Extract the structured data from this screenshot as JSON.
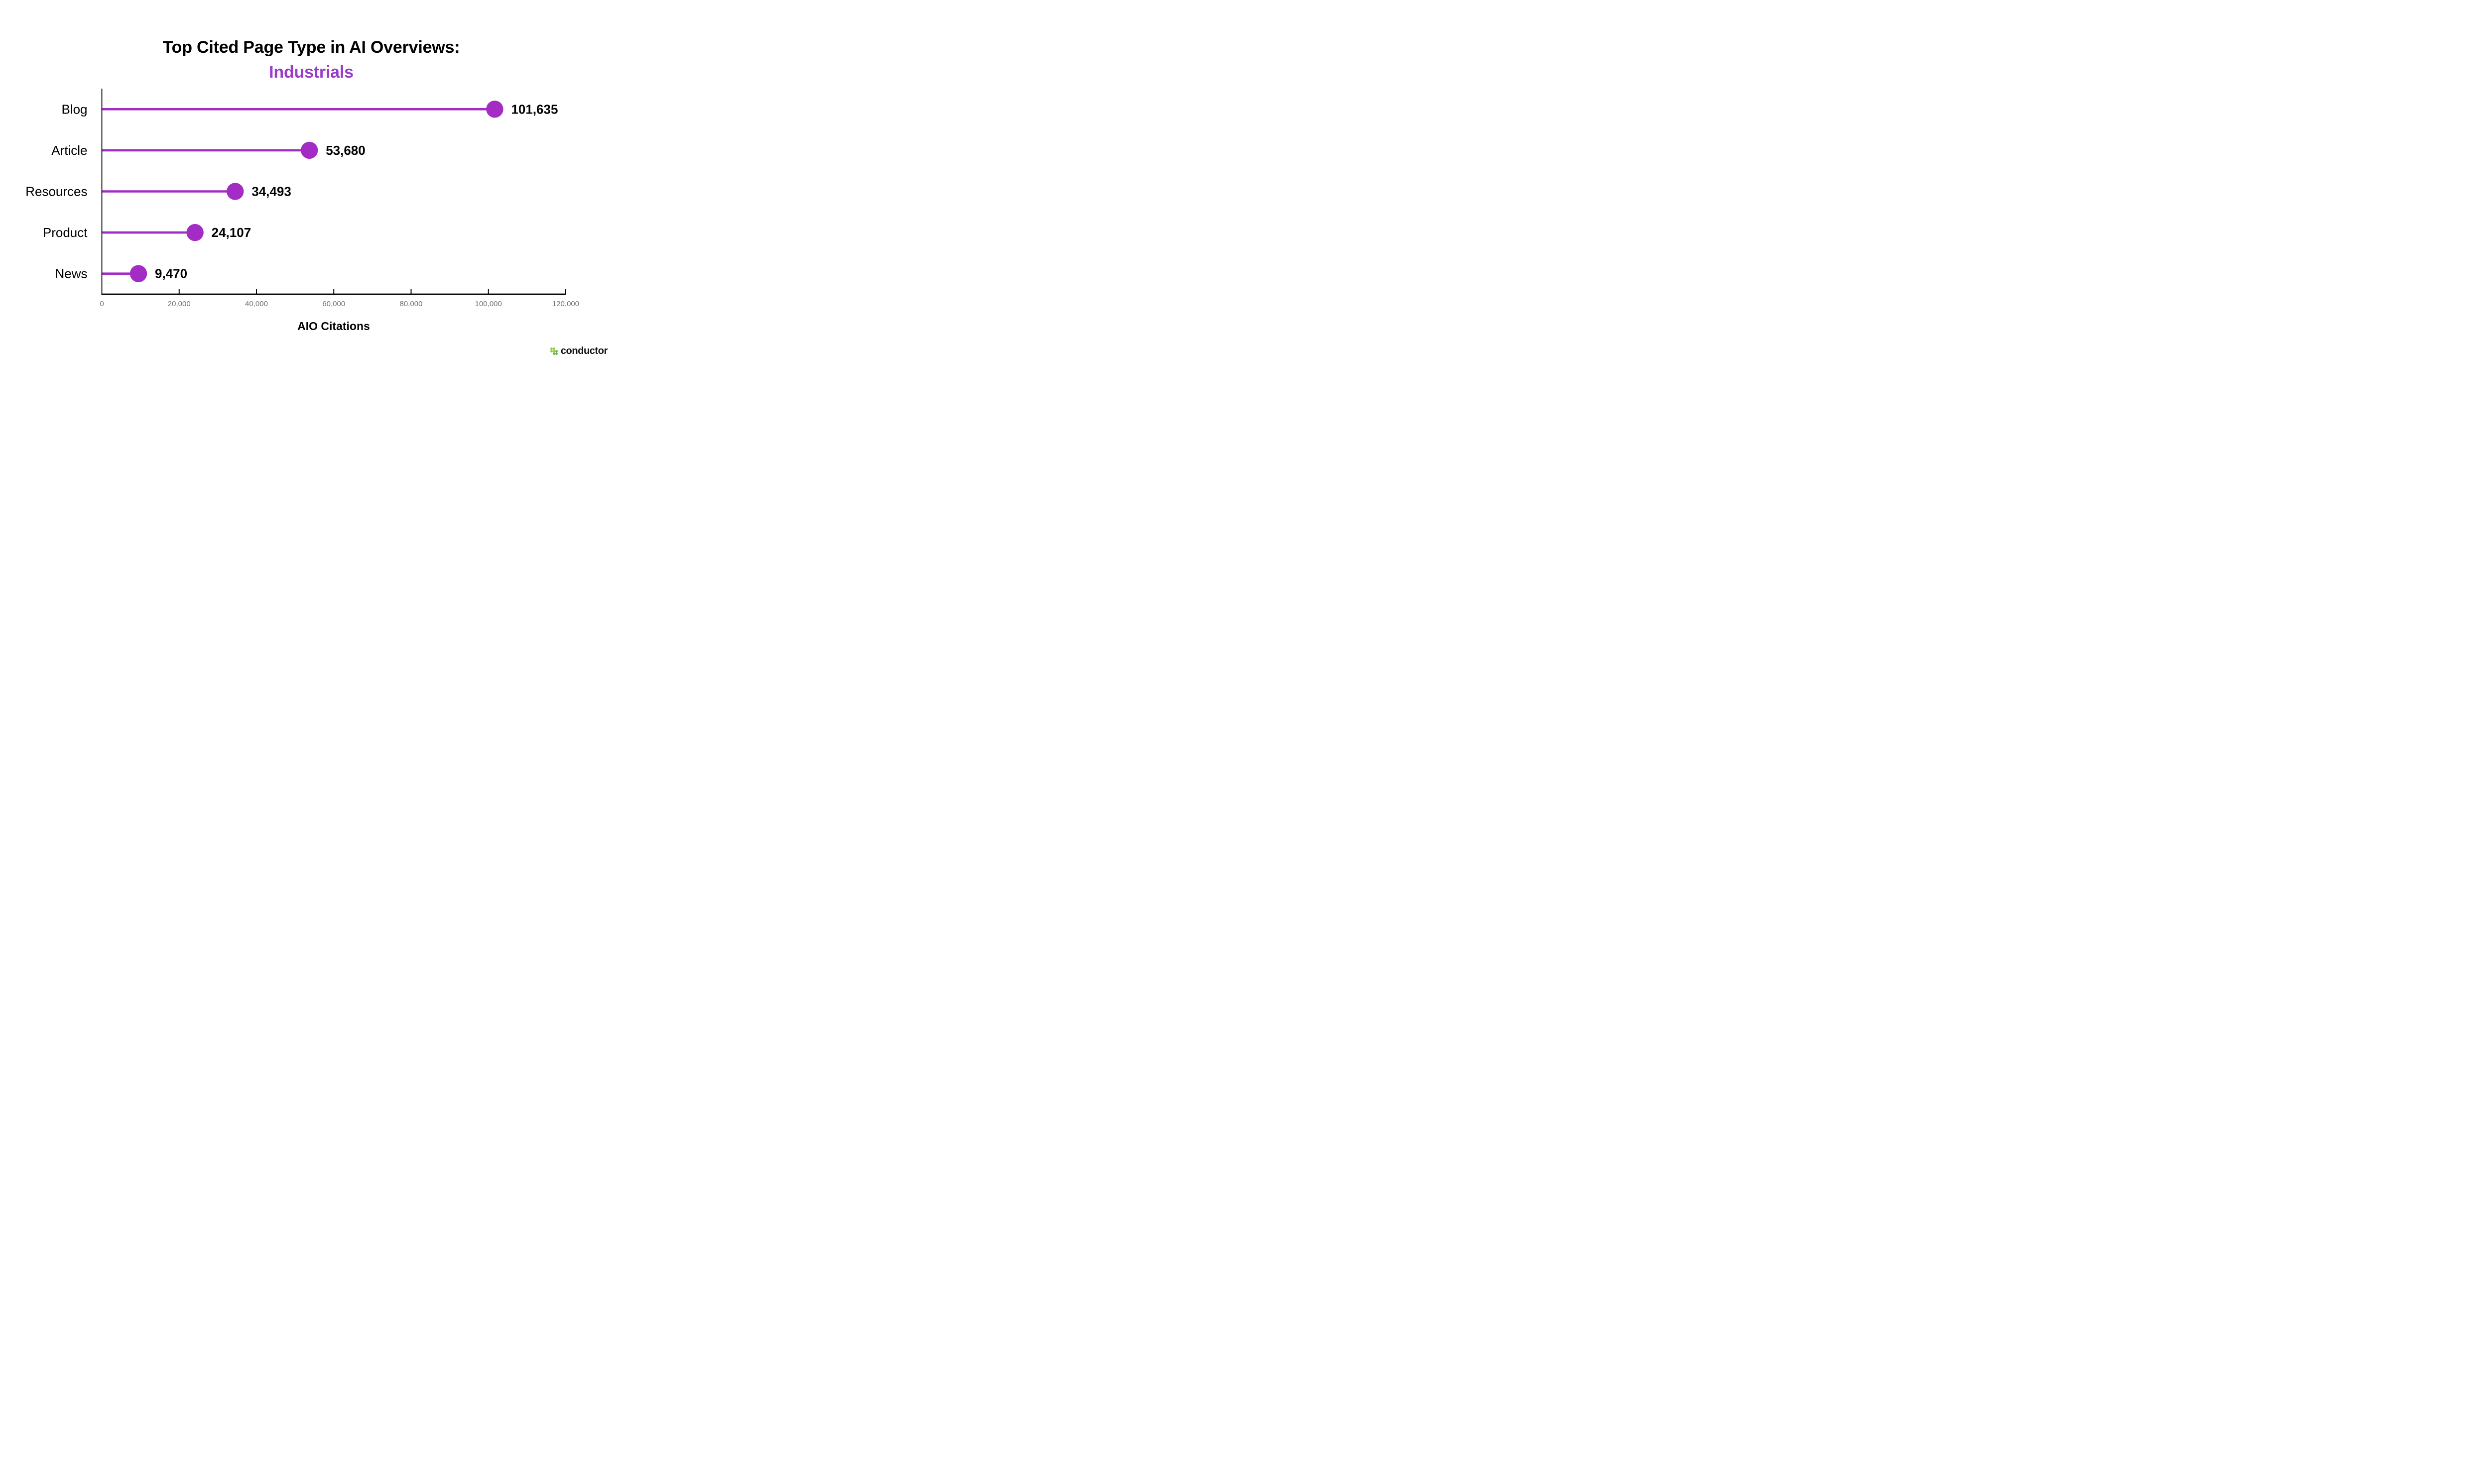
{
  "title": {
    "text": "Top Cited Page Type in AI Overviews:",
    "color": "#000000"
  },
  "subtitle": {
    "text": "Industrials",
    "color": "#9c3ac9"
  },
  "logo": {
    "text": "conductor",
    "dot_color_light": "#97c93e",
    "dot_color_dark": "#68b54a"
  },
  "chart_data": {
    "type": "bar",
    "style": "lollipop",
    "orientation": "horizontal",
    "title": "Top Cited Page Type in AI Overviews: Industrials",
    "categories": [
      "Blog",
      "Article",
      "Resources",
      "Product",
      "News"
    ],
    "values": [
      101635,
      53680,
      34493,
      24107,
      9470
    ],
    "value_labels": [
      "101,635",
      "53,680",
      "34,493",
      "24,107",
      "9,470"
    ],
    "xlabel": "AIO Citations",
    "ylabel": "",
    "xlim": [
      0,
      120000
    ],
    "xticks": [
      0,
      20000,
      40000,
      60000,
      80000,
      100000,
      120000
    ],
    "xtick_labels": [
      "0",
      "20,000",
      "40,000",
      "60,000",
      "80,000",
      "100,000",
      "120,000"
    ],
    "grid": false,
    "legend": false,
    "accent_color": "#a32cc4",
    "axis_color": "#000000",
    "tick_label_color": "#6f6f6f",
    "label_color": "#000000"
  }
}
